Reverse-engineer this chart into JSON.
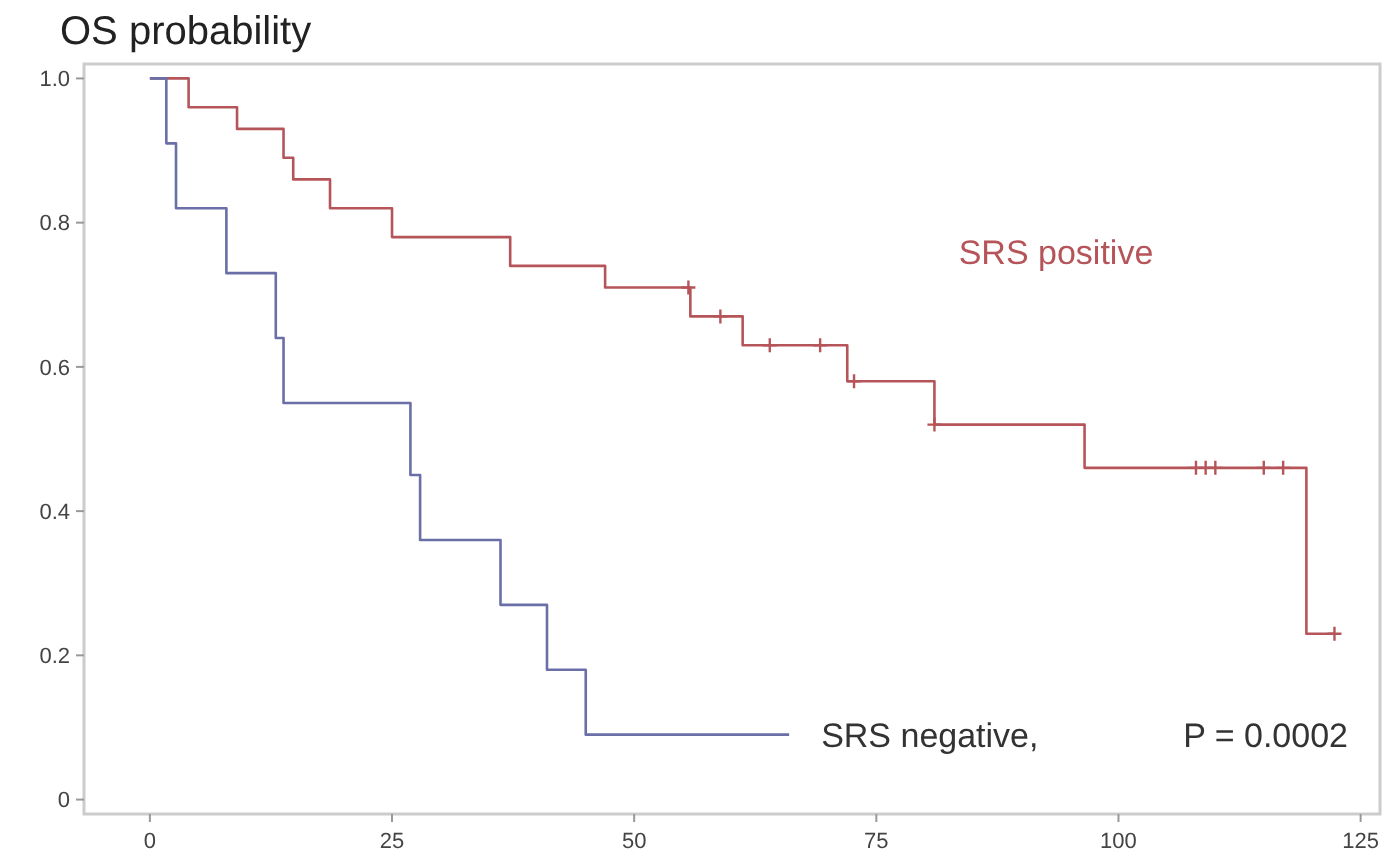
{
  "chart_data": {
    "type": "step",
    "title": "OS probability",
    "xlim": [
      -6.8,
      127
    ],
    "ylim": [
      -0.02,
      1.02
    ],
    "xticks": [
      0,
      25,
      50,
      75,
      100,
      125
    ],
    "yticks": [
      0,
      0.2,
      0.4,
      0.6,
      0.8,
      {
        "value": 1,
        "label": "1.0"
      }
    ],
    "grid": false,
    "marker": "none",
    "line_style": "solid",
    "series": [
      {
        "name": "SRS positive",
        "color": "#b5555a",
        "x": [
          0,
          4,
          9,
          13.8,
          14.8,
          18.6,
          25,
          37.2,
          47,
          55.8,
          61.2,
          72,
          81,
          96.5,
          119.4,
          122.3
        ],
        "values": [
          1,
          0.96,
          0.93,
          0.89,
          0.86,
          0.82,
          0.78,
          0.74,
          0.71,
          0.67,
          0.63,
          0.58,
          0.52,
          0.46,
          0.23,
          0.23
        ]
      },
      {
        "name": "SRS negative,",
        "color": "#6a6fa8",
        "x": [
          0,
          1.7,
          2.7,
          7.9,
          13,
          13.8,
          26.9,
          27.9,
          36.2,
          41,
          45,
          66
        ],
        "values": [
          1,
          0.91,
          0.82,
          0.73,
          0.64,
          0.55,
          0.45,
          0.36,
          0.27,
          0.18,
          0.09,
          0.09
        ]
      },
      {
        "type": "scatter",
        "marker": "cross",
        "color": "#b5555a",
        "x": [
          55.6,
          58.9,
          64,
          69.2,
          72.7,
          81,
          108,
          109,
          110,
          115,
          117,
          122.3
        ],
        "values": [
          0.71,
          0.67,
          0.63,
          0.63,
          0.58,
          0.52,
          0.46,
          0.46,
          0.46,
          0.46,
          0.46,
          0.23
        ]
      }
    ],
    "annotations": [
      "P = 0.0002"
    ]
  }
}
